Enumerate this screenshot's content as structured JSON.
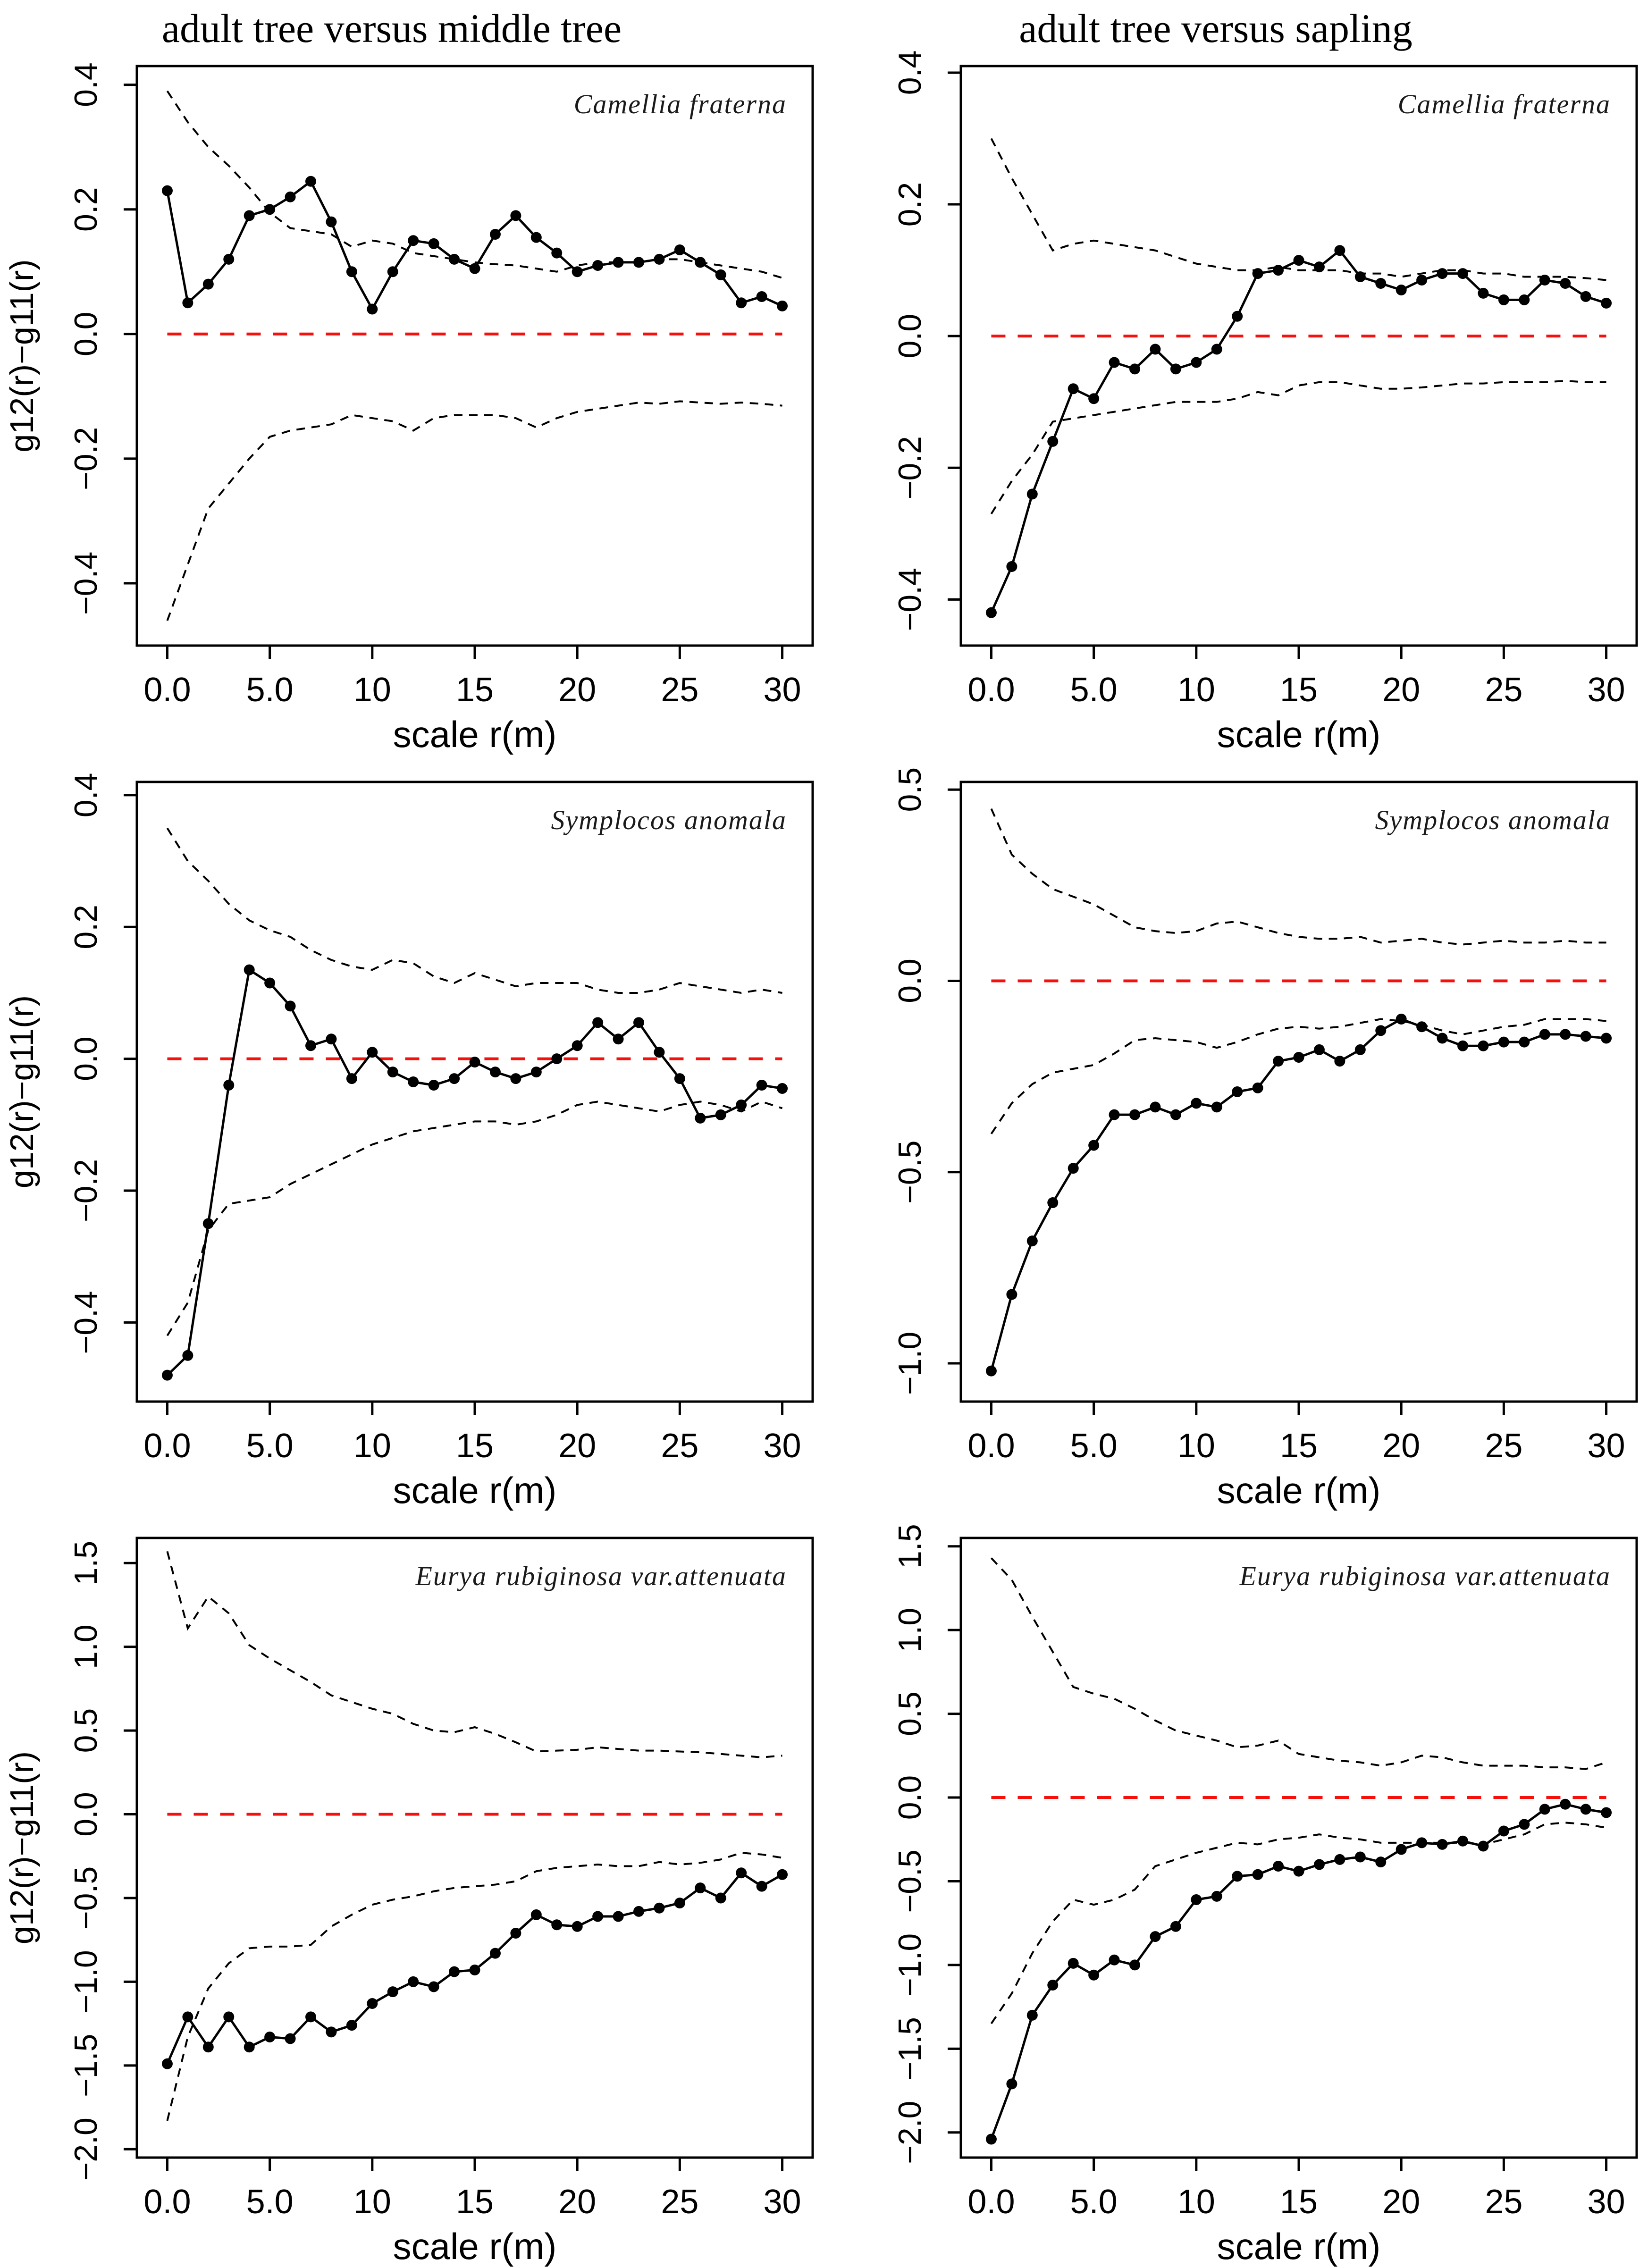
{
  "figure": {
    "column_titles": [
      "adult tree versus middle tree",
      "adult tree versus sapling"
    ],
    "xlabel": "scale r(m)",
    "ylabel": "g12(r)−g11(r)",
    "zero_line_color": "#f5100c",
    "envelope_color": "#000000",
    "observed_color": "#000000",
    "species_labels": [
      "Camellia fraterna",
      "Symplocos anomala",
      "Eurya rubiginosa var.attenuata"
    ]
  },
  "chart_data": [
    {
      "type": "line",
      "title": "adult tree versus middle tree",
      "species": "Camellia fraterna",
      "xlabel": "scale r(m)",
      "ylabel": "g12(r)−g11(r)",
      "x": [
        0,
        1,
        2,
        3,
        4,
        5,
        6,
        7,
        8,
        9,
        10,
        11,
        12,
        13,
        14,
        15,
        16,
        17,
        18,
        19,
        20,
        21,
        22,
        23,
        24,
        25,
        26,
        27,
        28,
        29,
        30
      ],
      "xticks": [
        0,
        5,
        10,
        15,
        20,
        25,
        30
      ],
      "yticks": [
        0.4,
        0.2,
        0.0,
        -0.2,
        -0.4
      ],
      "ylim": [
        -0.5,
        0.43
      ],
      "grid": false,
      "legend": "none",
      "show_title": true,
      "show_ylabel": true,
      "series": [
        {
          "name": "observed",
          "style": "solid-points",
          "values": [
            0.23,
            0.05,
            0.08,
            0.12,
            0.19,
            0.2,
            0.22,
            0.245,
            0.18,
            0.1,
            0.04,
            0.1,
            0.15,
            0.145,
            0.12,
            0.105,
            0.16,
            0.19,
            0.155,
            0.13,
            0.1,
            0.11,
            0.115,
            0.115,
            0.12,
            0.135,
            0.115,
            0.095,
            0.05,
            0.06,
            0.045
          ]
        },
        {
          "name": "upper envelope",
          "style": "dashed",
          "values": [
            0.39,
            0.34,
            0.3,
            0.27,
            0.235,
            0.195,
            0.17,
            0.165,
            0.16,
            0.14,
            0.15,
            0.145,
            0.13,
            0.125,
            0.12,
            0.115,
            0.112,
            0.11,
            0.105,
            0.1,
            0.11,
            0.115,
            0.115,
            0.115,
            0.12,
            0.12,
            0.115,
            0.11,
            0.105,
            0.1,
            0.09
          ]
        },
        {
          "name": "lower envelope",
          "style": "dashed",
          "values": [
            -0.46,
            -0.37,
            -0.28,
            -0.24,
            -0.2,
            -0.165,
            -0.155,
            -0.15,
            -0.145,
            -0.13,
            -0.135,
            -0.14,
            -0.155,
            -0.135,
            -0.13,
            -0.13,
            -0.13,
            -0.135,
            -0.15,
            -0.135,
            -0.125,
            -0.12,
            -0.115,
            -0.11,
            -0.112,
            -0.108,
            -0.11,
            -0.112,
            -0.11,
            -0.112,
            -0.115
          ]
        }
      ]
    },
    {
      "type": "line",
      "title": "adult tree versus sapling",
      "species": "Camellia fraterna",
      "xlabel": "scale r(m)",
      "ylabel": "g12(r)−g11(r)",
      "x": [
        0,
        1,
        2,
        3,
        4,
        5,
        6,
        7,
        8,
        9,
        10,
        11,
        12,
        13,
        14,
        15,
        16,
        17,
        18,
        19,
        20,
        21,
        22,
        23,
        24,
        25,
        26,
        27,
        28,
        29,
        30
      ],
      "xticks": [
        0,
        5,
        10,
        15,
        20,
        25,
        30
      ],
      "yticks": [
        0.4,
        0.2,
        0.0,
        -0.2,
        -0.4
      ],
      "ylim": [
        -0.47,
        0.41
      ],
      "grid": false,
      "legend": "none",
      "show_title": true,
      "show_ylabel": false,
      "series": [
        {
          "name": "observed",
          "style": "solid-points",
          "values": [
            -0.42,
            -0.35,
            -0.24,
            -0.16,
            -0.08,
            -0.095,
            -0.04,
            -0.05,
            -0.02,
            -0.05,
            -0.04,
            -0.02,
            0.03,
            0.095,
            0.1,
            0.115,
            0.105,
            0.13,
            0.09,
            0.08,
            0.07,
            0.085,
            0.095,
            0.095,
            0.065,
            0.055,
            0.055,
            0.085,
            0.08,
            0.06,
            0.05
          ]
        },
        {
          "name": "upper envelope",
          "style": "dashed",
          "values": [
            0.3,
            0.24,
            0.185,
            0.13,
            0.14,
            0.145,
            0.14,
            0.135,
            0.13,
            0.12,
            0.11,
            0.105,
            0.1,
            0.1,
            0.105,
            0.1,
            0.1,
            0.1,
            0.095,
            0.095,
            0.09,
            0.095,
            0.1,
            0.1,
            0.095,
            0.095,
            0.09,
            0.09,
            0.09,
            0.088,
            0.085
          ]
        },
        {
          "name": "lower envelope",
          "style": "dashed",
          "values": [
            -0.27,
            -0.22,
            -0.18,
            -0.13,
            -0.125,
            -0.12,
            -0.115,
            -0.11,
            -0.105,
            -0.1,
            -0.1,
            -0.1,
            -0.095,
            -0.085,
            -0.09,
            -0.075,
            -0.07,
            -0.07,
            -0.075,
            -0.08,
            -0.08,
            -0.078,
            -0.075,
            -0.072,
            -0.072,
            -0.07,
            -0.07,
            -0.07,
            -0.068,
            -0.07,
            -0.07
          ]
        }
      ]
    },
    {
      "type": "line",
      "title": "adult tree versus middle tree",
      "species": "Symplocos anomala",
      "xlabel": "scale r(m)",
      "ylabel": "g12(r)−g11(r)",
      "x": [
        0,
        1,
        2,
        3,
        4,
        5,
        6,
        7,
        8,
        9,
        10,
        11,
        12,
        13,
        14,
        15,
        16,
        17,
        18,
        19,
        20,
        21,
        22,
        23,
        24,
        25,
        26,
        27,
        28,
        29,
        30
      ],
      "xticks": [
        0,
        5,
        10,
        15,
        20,
        25,
        30
      ],
      "yticks": [
        0.4,
        0.2,
        0.0,
        -0.2,
        -0.4
      ],
      "ylim": [
        -0.52,
        0.42
      ],
      "grid": false,
      "legend": "none",
      "show_title": false,
      "show_ylabel": true,
      "series": [
        {
          "name": "observed",
          "style": "solid-points",
          "values": [
            -0.48,
            -0.45,
            -0.25,
            -0.04,
            0.135,
            0.115,
            0.08,
            0.02,
            0.03,
            -0.03,
            0.01,
            -0.02,
            -0.035,
            -0.04,
            -0.03,
            -0.005,
            -0.02,
            -0.03,
            -0.02,
            0.0,
            0.02,
            0.055,
            0.03,
            0.055,
            0.01,
            -0.03,
            -0.09,
            -0.085,
            -0.07,
            -0.04,
            -0.045
          ]
        },
        {
          "name": "upper envelope",
          "style": "dashed",
          "values": [
            0.35,
            0.3,
            0.27,
            0.235,
            0.21,
            0.195,
            0.185,
            0.165,
            0.15,
            0.14,
            0.135,
            0.15,
            0.145,
            0.125,
            0.115,
            0.13,
            0.12,
            0.11,
            0.115,
            0.115,
            0.115,
            0.105,
            0.1,
            0.1,
            0.105,
            0.115,
            0.11,
            0.105,
            0.1,
            0.105,
            0.1
          ]
        },
        {
          "name": "lower envelope",
          "style": "dashed",
          "values": [
            -0.42,
            -0.37,
            -0.26,
            -0.22,
            -0.215,
            -0.21,
            -0.19,
            -0.175,
            -0.16,
            -0.145,
            -0.13,
            -0.12,
            -0.11,
            -0.105,
            -0.1,
            -0.095,
            -0.095,
            -0.1,
            -0.095,
            -0.085,
            -0.07,
            -0.065,
            -0.07,
            -0.075,
            -0.08,
            -0.07,
            -0.065,
            -0.07,
            -0.08,
            -0.065,
            -0.075
          ]
        }
      ]
    },
    {
      "type": "line",
      "title": "adult tree versus sapling",
      "species": "Symplocos anomala",
      "xlabel": "scale r(m)",
      "ylabel": "g12(r)−g11(r)",
      "x": [
        0,
        1,
        2,
        3,
        4,
        5,
        6,
        7,
        8,
        9,
        10,
        11,
        12,
        13,
        14,
        15,
        16,
        17,
        18,
        19,
        20,
        21,
        22,
        23,
        24,
        25,
        26,
        27,
        28,
        29,
        30
      ],
      "xticks": [
        0,
        5,
        10,
        15,
        20,
        25,
        30
      ],
      "yticks": [
        0.5,
        0.0,
        -0.5,
        -1.0
      ],
      "ylim": [
        -1.1,
        0.52
      ],
      "grid": false,
      "legend": "none",
      "show_title": false,
      "show_ylabel": false,
      "series": [
        {
          "name": "observed",
          "style": "solid-points",
          "values": [
            -1.02,
            -0.82,
            -0.68,
            -0.58,
            -0.49,
            -0.43,
            -0.35,
            -0.35,
            -0.33,
            -0.35,
            -0.32,
            -0.33,
            -0.29,
            -0.28,
            -0.21,
            -0.2,
            -0.18,
            -0.21,
            -0.18,
            -0.13,
            -0.1,
            -0.12,
            -0.15,
            -0.17,
            -0.17,
            -0.16,
            -0.16,
            -0.14,
            -0.14,
            -0.145,
            -0.15
          ]
        },
        {
          "name": "upper envelope",
          "style": "dashed",
          "values": [
            0.45,
            0.33,
            0.28,
            0.24,
            0.22,
            0.2,
            0.17,
            0.14,
            0.13,
            0.125,
            0.13,
            0.15,
            0.155,
            0.14,
            0.125,
            0.115,
            0.11,
            0.11,
            0.115,
            0.1,
            0.105,
            0.11,
            0.1,
            0.095,
            0.1,
            0.105,
            0.1,
            0.1,
            0.105,
            0.1,
            0.1
          ]
        },
        {
          "name": "lower envelope",
          "style": "dashed",
          "values": [
            -0.4,
            -0.32,
            -0.27,
            -0.24,
            -0.23,
            -0.22,
            -0.19,
            -0.155,
            -0.15,
            -0.155,
            -0.16,
            -0.175,
            -0.16,
            -0.14,
            -0.125,
            -0.12,
            -0.125,
            -0.12,
            -0.11,
            -0.1,
            -0.105,
            -0.115,
            -0.13,
            -0.14,
            -0.13,
            -0.12,
            -0.115,
            -0.1,
            -0.1,
            -0.1,
            -0.105
          ]
        }
      ]
    },
    {
      "type": "line",
      "title": "adult tree versus middle tree",
      "species": "Eurya rubiginosa var.attenuata",
      "xlabel": "scale r(m)",
      "ylabel": "g12(r)−g11(r)",
      "x": [
        0,
        1,
        2,
        3,
        4,
        5,
        6,
        7,
        8,
        9,
        10,
        11,
        12,
        13,
        14,
        15,
        16,
        17,
        18,
        19,
        20,
        21,
        22,
        23,
        24,
        25,
        26,
        27,
        28,
        29,
        30
      ],
      "xticks": [
        0,
        5,
        10,
        15,
        20,
        25,
        30
      ],
      "yticks": [
        1.5,
        1.0,
        0.5,
        0.0,
        -0.5,
        -1.0,
        -1.5,
        -2.0
      ],
      "ylim": [
        -2.05,
        1.65
      ],
      "grid": false,
      "legend": "none",
      "show_title": false,
      "show_ylabel": true,
      "series": [
        {
          "name": "observed",
          "style": "solid-points",
          "values": [
            -1.49,
            -1.21,
            -1.39,
            -1.21,
            -1.39,
            -1.33,
            -1.34,
            -1.21,
            -1.3,
            -1.26,
            -1.13,
            -1.06,
            -1.0,
            -1.03,
            -0.94,
            -0.93,
            -0.83,
            -0.71,
            -0.6,
            -0.66,
            -0.67,
            -0.61,
            -0.61,
            -0.58,
            -0.56,
            -0.53,
            -0.44,
            -0.5,
            -0.35,
            -0.43,
            -0.36
          ]
        },
        {
          "name": "upper envelope",
          "style": "dashed",
          "values": [
            1.57,
            1.11,
            1.3,
            1.2,
            1.01,
            0.93,
            0.86,
            0.79,
            0.71,
            0.67,
            0.63,
            0.6,
            0.54,
            0.5,
            0.49,
            0.52,
            0.48,
            0.43,
            0.375,
            0.38,
            0.385,
            0.4,
            0.39,
            0.38,
            0.38,
            0.375,
            0.37,
            0.36,
            0.35,
            0.34,
            0.35
          ]
        },
        {
          "name": "lower envelope",
          "style": "dashed",
          "values": [
            -1.83,
            -1.33,
            -1.04,
            -0.89,
            -0.8,
            -0.79,
            -0.79,
            -0.78,
            -0.67,
            -0.6,
            -0.54,
            -0.51,
            -0.49,
            -0.46,
            -0.44,
            -0.43,
            -0.42,
            -0.4,
            -0.34,
            -0.32,
            -0.31,
            -0.3,
            -0.31,
            -0.31,
            -0.285,
            -0.3,
            -0.29,
            -0.27,
            -0.23,
            -0.24,
            -0.26
          ]
        }
      ]
    },
    {
      "type": "line",
      "title": "adult tree versus sapling",
      "species": "Eurya rubiginosa var.attenuata",
      "xlabel": "scale r(m)",
      "ylabel": "g12(r)−g11(r)",
      "x": [
        0,
        1,
        2,
        3,
        4,
        5,
        6,
        7,
        8,
        9,
        10,
        11,
        12,
        13,
        14,
        15,
        16,
        17,
        18,
        19,
        20,
        21,
        22,
        23,
        24,
        25,
        26,
        27,
        28,
        29,
        30
      ],
      "xticks": [
        0,
        5,
        10,
        15,
        20,
        25,
        30
      ],
      "yticks": [
        1.5,
        1.0,
        0.5,
        0.0,
        -0.5,
        -1.0,
        -1.5,
        -2.0
      ],
      "ylim": [
        -2.15,
        1.55
      ],
      "grid": false,
      "legend": "none",
      "show_title": false,
      "show_ylabel": false,
      "series": [
        {
          "name": "observed",
          "style": "solid-points",
          "values": [
            -2.04,
            -1.71,
            -1.3,
            -1.12,
            -0.99,
            -1.06,
            -0.97,
            -1.0,
            -0.83,
            -0.77,
            -0.61,
            -0.59,
            -0.47,
            -0.46,
            -0.41,
            -0.44,
            -0.4,
            -0.37,
            -0.355,
            -0.385,
            -0.31,
            -0.27,
            -0.28,
            -0.26,
            -0.29,
            -0.2,
            -0.16,
            -0.07,
            -0.04,
            -0.07,
            -0.09
          ]
        },
        {
          "name": "upper envelope",
          "style": "dashed",
          "values": [
            1.43,
            1.3,
            1.08,
            0.87,
            0.66,
            0.62,
            0.59,
            0.53,
            0.46,
            0.4,
            0.37,
            0.34,
            0.3,
            0.31,
            0.34,
            0.26,
            0.24,
            0.22,
            0.21,
            0.19,
            0.21,
            0.25,
            0.24,
            0.21,
            0.19,
            0.19,
            0.19,
            0.18,
            0.18,
            0.17,
            0.21
          ]
        },
        {
          "name": "lower envelope",
          "style": "dashed",
          "values": [
            -1.35,
            -1.17,
            -0.93,
            -0.74,
            -0.61,
            -0.64,
            -0.61,
            -0.55,
            -0.41,
            -0.37,
            -0.33,
            -0.3,
            -0.27,
            -0.28,
            -0.25,
            -0.24,
            -0.22,
            -0.24,
            -0.25,
            -0.27,
            -0.27,
            -0.27,
            -0.27,
            -0.27,
            -0.28,
            -0.25,
            -0.22,
            -0.16,
            -0.15,
            -0.16,
            -0.18
          ]
        }
      ]
    }
  ]
}
